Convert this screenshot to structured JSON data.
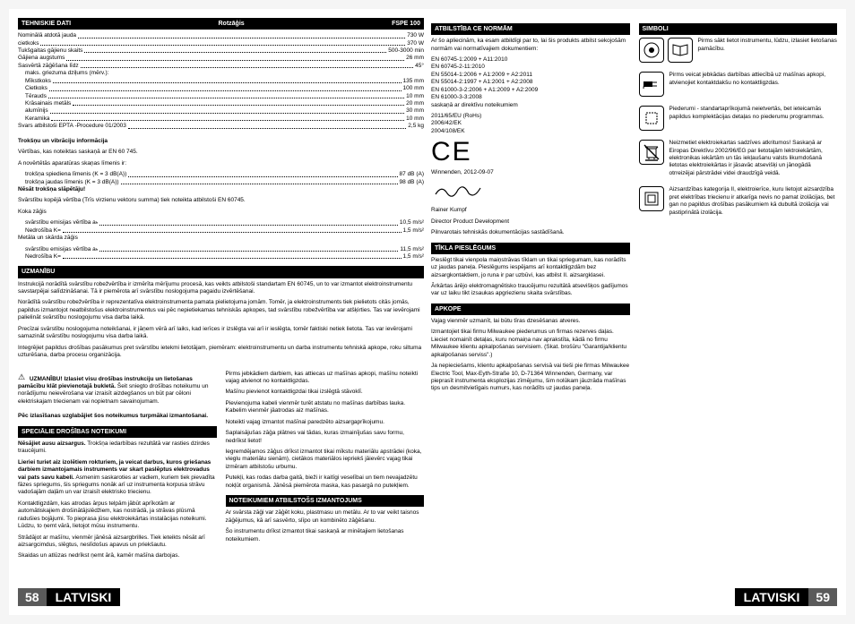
{
  "left": {
    "techHeader": {
      "label": "TEHNISKIE DATI",
      "mid": "Rotzāģis",
      "model": "FSPE 100"
    },
    "specs": [
      {
        "l": "Nominālā atdotā jauda",
        "v": "730 W"
      },
      {
        "l": "cietkoks",
        "v": "370 W"
      },
      {
        "l": "Tukšgaitas gājienu skaits",
        "v": "500-3000 min"
      },
      {
        "l": "Gājiena augstums",
        "v": "26 mm"
      },
      {
        "l": "Sasvērtā zāģēšana līdz",
        "v": "45°"
      }
    ],
    "depthLabel": "maks. griezuma dziļums (mērv.):",
    "depths": [
      {
        "l": "Mīkstkoks",
        "v": "135 mm"
      },
      {
        "l": "Cietkoks",
        "v": "100 mm"
      },
      {
        "l": "Tērauds",
        "v": "10 mm"
      },
      {
        "l": "Krāsainais metāls",
        "v": "20 mm"
      },
      {
        "l": "alumīnijs",
        "v": "30 mm"
      },
      {
        "l": "Keramika",
        "v": "10 mm"
      }
    ],
    "weight": {
      "l": "Svars atbilstoši EPTA -Procedure 01/2003",
      "v": "2,5 kg"
    },
    "noiseTitle": "Trokšņu un vibrāciju informācija",
    "noiseIntro": "Vērtības, kas noteiktas saskaņā ar EN 60 745.",
    "noiseA": "A novērtētās aparatūras skaņas līmenis ir:",
    "noiseSpecs": [
      {
        "l": "trokšņa spiediena līmenis (K = 3 dB(A))",
        "v": "87 dB (A)"
      },
      {
        "l": "trokšņa jaudas līmenis (K = 3 dB(A))",
        "v": "98 dB (A)"
      }
    ],
    "wearEar": "Nēsāt trokšņa slāpētāju!",
    "vibIntro": "Svārstību kopējā vērtība (Trīs virzienu vektoru summa) tiek noteikta atbilstoši EN 60745.",
    "vibWood": "Koka zāģis",
    "vibSpecs1": [
      {
        "l": "svārstību emisijas vērtība aₕ",
        "v": "10,5 m/s²"
      },
      {
        "l": "Nedrošība K=",
        "v": "1,5 m/s²"
      }
    ],
    "vibMetal": "Metāla un skārda zāģis",
    "vibSpecs2": [
      {
        "l": "svārstību emisijas vērtība aₕ",
        "v": "11,5 m/s²"
      },
      {
        "l": "Nedrošība K=",
        "v": "1,5 m/s²"
      }
    ],
    "uzmanibu": "UZMANĪBU",
    "uzText1": "Instrukcijā norādītā svārstību robežvērtība ir izmērīta mērījumu procesā, kas veikts atbilstoši standartam EN 60745, un to var izmantot elektroinstrumentu savstarpējai salīdzināšanai. Tā ir piemērota arī svārstību noslogojuma pagaidu izvērtēšanai.",
    "uzText2": "Norādītā svārstību robežvērtība ir reprezentatīva elektroinstrumenta pamata pielietojuma jomām. Tomēr, ja elektroinstruments tiek pielietots citās jomās, papildus izmantojot neatbilstošus elektroinstrumentus vai pēc nepietiekamas tehniskās apkopes, tad svārstību robežvērtība var atšķirties. Tas var ievērojami palielināt svārstību noslogojumu visa darba laikā.",
    "uzText3": "Precīzai svārstību noslogojuma noteikšanai, ir jāņem vērā arī laiks, kad ierīces ir izslēgta vai arī ir ieslēgta, tomēr faktiski netiek lietota. Tas var ievērojami samazināt svārstību noslogojumu visa darba laikā.",
    "uzText4": "Integrējiet papildus drošības pasākumus pret svārstību ietekmi lietotājam, piemēram: elektroinstrumentu un darba instrumentu tehniskā apkope, roku siltuma uzturēšana, darba procesu organizācija.",
    "warnBold": "UZMANĪBU! Izlasiet visu drošības instrukciju un lietošanas pamācību klāt pievienotajā bukletā.",
    "warnRest": " Šeit sniegto drošības noteikumu un norādījumu neievērošana var izraisīt aizdegšanos un būt par cēloni elektriskajam triecienam vai nopietnam savainojumam.",
    "warnKeep": "Pēc izlasīšanas uzglabājiet šos noteikumus turpmākai izmantošanai.",
    "specSafety": "SPECIĀLIE DROŠĪBAS NOTEIKUMI",
    "ss1b": "Nēsājiet ausu aizsargus.",
    "ss1": " Trokšņa iedarbības rezultātā var rasties dzirdes traucējumi.",
    "ss2b": "Lieriei turiet aiz izolētiem rokturiem, ja veicat darbus, kuros griešanas darbiem izmantojamais instruments var skart paslēptus elektrovadus vai pats savu kabeli.",
    "ss2": " Asmenim saskaroties ar vadiem, kuriem tiek pievadīta fāzes spriegums, šis spriegums nonāk arī uz instrumenta korpusa strāvu vadošajām daļām un var izraisīt elektrisko triecienu.",
    "ss3": "Kontaktligzdām, kas atrodas ārpus telpām jābūt aprīkotām ar automātiskajiem drošinātājslēdžiem, kas nostrādā, ja strāvas plūsmā radušies bojājumi. To pieprasa jūsu elektroiekārtas instalācijas noteikumi. Lūdzu, to ņemt vārā, lietojot mūsu instrumentu.",
    "ss4": "Strādājot ar mašīnu, vienmēr jānēsā aizsargbrilles. Tiek ieteikts nēsāt arī aizsargcimdus, slēgtus, neslīdošus apavus un priekšautu.",
    "ss5": "Skaidas un atlūzas nedrīkst ņemt ārā, kamēr mašīna darbojas.",
    "rc1": "Pirms jebkādiem darbiem, kas attiecas uz mašīnas apkopi, mašīnu noteikti vajag atvienot no kontaktligzdas.",
    "rc2": "Mašīnu pievienot kontaktligzdai tikai izslēgtā stāvoklī.",
    "rc3": "Pievienojuma kabeli vienmēr turēt atstatu no mašīnas darbības lauka. Kabelim vienmēr jāatrodas aiz mašīnas.",
    "rc4": "Noteikti vajag izmantot mašīnai paredzēto aizsargaprīkojumu.",
    "rc5": "Saplaisājušas zāģa plātnes vai tādas, kuras izmainījušas savu formu, nedrīkst lietot!",
    "rc6": "Iegremdējamos zāģus drīkst izmantot tikai mīkstu materiālu apstrādei (koka, vieglu materiālu sienām), cietākos materiālos iepriekš jāievērc vajag tikai izmēram atbilstošu urbumu.",
    "rc7": "Putekļi, kas rodas darba gaitā, bieži ir kaitīgi veselībai un tiem nevajadzētu nokļūt organismā. Jānēsā piemērota maska, kas pasargā no putekļiem.",
    "noteik": "NOTEIKUMIEM ATBILSTOŠS IZMANTOJUMS",
    "nk1": "Ar svārsta zāģi var zāģēt koku, plastmasu un metālu. Ar to var veikt taisnos zāģējumus, kā arī sasvērto, slīpo un kombinēto zāģēšanu.",
    "nk2": "Šo instrumentu drīkst izmantot tikai saskaņā ar minētajiem lietošanas noteikumiem.",
    "pageno": "58",
    "lang": "LATVISKI"
  },
  "right": {
    "ceHeader": "ATBILSTĪBA CE NORMĀM",
    "ceIntro": "Ar šo apliecinām, ka esam atbildīgi par to, lai šis produkts atbilst sekojošām normām vai normatīvajiem dokumentiem:",
    "ceNorms": [
      "EN 60745-1:2009 + A11:2010",
      "EN 60745-2-11:2010",
      "EN 55014-1:2006 + A1:2009 + A2:2011",
      "EN 55014-2:1997 + A1:2001 + A2:2008",
      "EN 61000-3-2:2006 + A1:2009 + A2:2009",
      "EN 61000-3-3:2008"
    ],
    "ceDir": "saskaņā ar direktīvu noteikumiem",
    "ceDirs": [
      "2011/65/EU (RoHs)",
      "2006/42/EK",
      "2004/108/EK"
    ],
    "cePlace": "Winnenden, 2012-09-07",
    "ceName": "Rainer Kumpf",
    "ceTitle": "Director Product Development",
    "ceAuth": "Pilnvarotais tehniskās dokumentācijas sastādīšanā.",
    "tiklaHeader": "TĪKLA PIESLĒGUMS",
    "tk1": "Pieslēgt tikai vienpola maiņstrāvas tīklam un tikai spriegumam, kas norādīts uz jaudas paneļa. Pieslēgums iespējams arī kontaktligzdām bez aizsargkontaktiem, jo runa ir par uzbūvi, kas atbilst II. aizsargklasei.",
    "tk2": "Ārkārtas ārējo elektromagnētisko traucējumu rezultātā atsevišķos gadījumos var uz laiku tikt izsaukas apgriezienu skaita svārstības.",
    "apkopeHeader": "APKOPE",
    "ap1": "Vajag vienmēr uzmanīt, lai būtu tīras dzesēšanas atveres.",
    "ap2": "Izmantojiet tikai firmu Milwaukee piederumus un firmas rezerves daļas. Lieciet nomainīt detaļas, kuru nomaiņa nav aprakstīta, kādā no firmu Milwaukee klientu apkalpošanas servisiem. (Skat. brošūru \"Garantija/klientu apkalpošanas serviss\".)",
    "ap3": "Ja nepieciešams, klientu apkalpošanas servisā vai tieši pie firmas Milwaukee Electric Tool, Max-Eyth-Straße 10, D-71364 Winnenden, Germany, var pieprasīt instrumenta eksplozijas zīmējumu, šim nolūkam jāuzrāda mašīnas tips un desmitvietīgais numurs, kas norādīts uz jaudas paneļa.",
    "simboliHeader": "SIMBOLI",
    "sym1": "Pirms sākt lietot instrumentu, lūdzu, izlasiet lietošanas pamācību.",
    "sym2": "Pirms veicat jebkādas darbības attiecībā uz mašīnas apkopi, atvienojiet kontaktdakšu no kontaktligzdas.",
    "sym3": "Piederumi - standartaprīkojumā neietvertās, bet ieteicamās papildus komplektācijas detaļas no piederumu programmas.",
    "sym4": "Neizmetiet elektroiekartas sadzīves atkritumos! Saskaņā ar Eiropas Direktīvu 2002/96/EG par lietotajām lektroiekārtām, elektronikas iekārtām un tās iekļaušanu valsts likumdošanā lietotas elektroiekārtas ir jāsavāc atsevišķi un jānogādā otrreizējai pārstrādei videi draudzīgā veidā.",
    "sym5": "Aizsardzības kategorija II, elektroierīce, kuru lietojot aizsardzība pret elektrības triecienu ir atkarīga nevis no pamat izolācijas, bet gan no papildus drošības pasākumiem kā dubultā izolācija vai pastiprinātā izolācija.",
    "pageno": "59",
    "lang": "LATVISKI"
  }
}
